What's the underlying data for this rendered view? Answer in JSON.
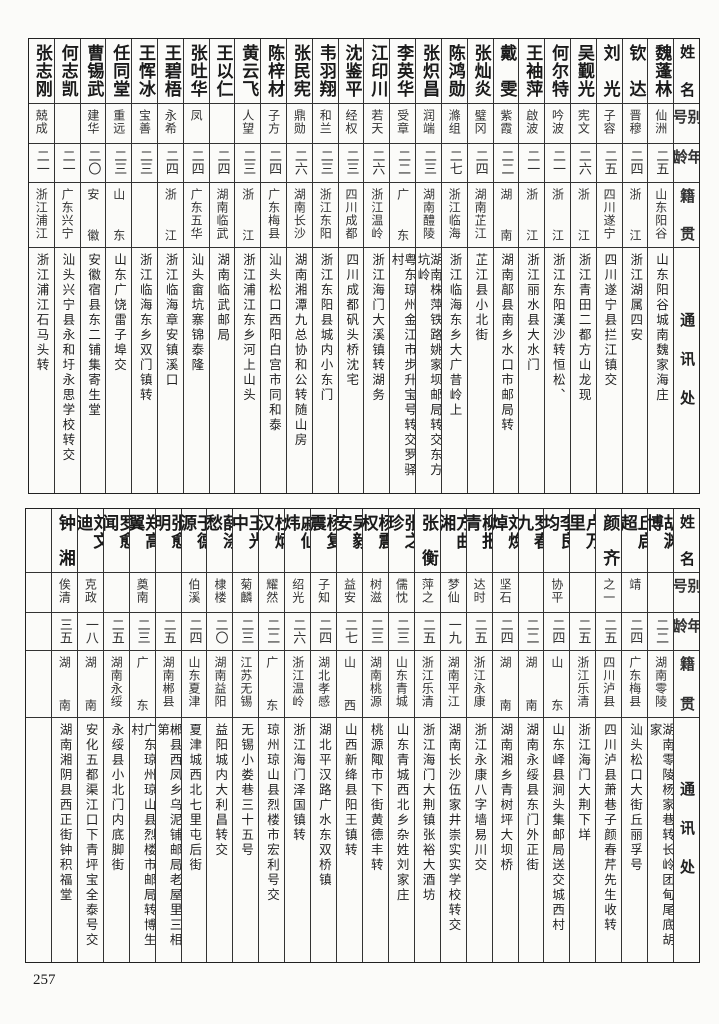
{
  "headers": {
    "name": "姓名",
    "alias": "别号",
    "age": "年龄",
    "native": "籍贯",
    "address": "通讯处"
  },
  "top_table": [
    {
      "name": "魏蓬林",
      "alias": "仙洲",
      "age": "二五",
      "native": "山东阳谷",
      "address": "山东阳谷城南魏家海庄"
    },
    {
      "name": "钦达",
      "alias": "晋穆",
      "age": "二四",
      "native": "浙江",
      "address": "浙江湖属四安"
    },
    {
      "name": "刘光",
      "alias": "子容",
      "age": "二五",
      "native": "四川遂宁",
      "address": "四川遂宁县拦江镇交"
    },
    {
      "name": "吴觐光",
      "alias": "宪文",
      "age": "二六",
      "native": "浙江",
      "address": "浙江青田二都方山龙现"
    },
    {
      "name": "何尔特",
      "alias": "吟波",
      "age": "二一",
      "native": "浙江",
      "address": "浙江东阳漢沙转恒松、"
    },
    {
      "name": "王袖萍",
      "alias": "啟波",
      "age": "二一",
      "native": "浙江",
      "address": "浙江丽水县大水门"
    },
    {
      "name": "戴雯",
      "alias": "紫霞",
      "age": "二二",
      "native": "湖南",
      "address": "湖南鄗县南乡水口市邮局转"
    },
    {
      "name": "张灿炎",
      "alias": "璧冈",
      "age": "二四",
      "native": "湖南芷江",
      "address": "芷江县小北街"
    },
    {
      "name": "陈鸿勋",
      "alias": "滌组",
      "age": "二七",
      "native": "浙江临海",
      "address": "浙江临海东乡大广昔岭上"
    },
    {
      "name": "张炽昌",
      "alias": "润端",
      "age": "二三",
      "native": "湖南醴陵",
      "address": "湖南株萍铁路姚家坝邮局转交东方坑岭"
    },
    {
      "name": "李英华",
      "alias": "受章",
      "age": "二二",
      "native": "广东",
      "address": "粤东琼州金江市步升宝号转交罗驿村"
    },
    {
      "name": "江印川",
      "alias": "若天",
      "age": "二六",
      "native": "浙江温岭",
      "address": "浙江海门大溪镇转湖务"
    },
    {
      "name": "沈鉴平",
      "alias": "经权",
      "age": "二三",
      "native": "四川成都",
      "address": "四川成都矾头桥沈宅"
    },
    {
      "name": "韦羽翔",
      "alias": "和兰",
      "age": "二三",
      "native": "浙江东阳",
      "address": "浙江东阳县城内小东门"
    },
    {
      "name": "张民宪",
      "alias": "鼎勋",
      "age": "二六",
      "native": "湖南长沙",
      "address": "湖南湘潭九总协和公转随山房"
    },
    {
      "name": "陈梓材",
      "alias": "子方",
      "age": "二四",
      "native": "广东梅县",
      "address": "汕头松口西阳白宫市同和泰"
    },
    {
      "name": "黄云飞",
      "alias": "人望",
      "age": "二三",
      "native": "浙江",
      "address": "浙江浦江东乡河上山头"
    },
    {
      "name": "王以仁",
      "alias": "",
      "age": "二四",
      "native": "湖南临武",
      "address": "湖南临武邮局"
    },
    {
      "name": "张吐华",
      "alias": "凤",
      "age": "二四",
      "native": "广东五华",
      "address": "汕头畲坑寨锦泰隆"
    },
    {
      "name": "王碧梧",
      "alias": "永希",
      "age": "二四",
      "native": "浙江",
      "address": "浙江临海章安镇溪口"
    },
    {
      "name": "王恽冰",
      "alias": "宝善",
      "age": "二三",
      "native": "",
      "address": "浙江临海东乡双门镇转"
    },
    {
      "name": "任同堂",
      "alias": "重远",
      "age": "二三",
      "native": "山东",
      "address": "山东广饶雷子埠交"
    },
    {
      "name": "曹锡武",
      "alias": "建华",
      "age": "二〇",
      "native": "安徽",
      "address": "安徽宿县东二铺集寄生堂"
    },
    {
      "name": "何志凯",
      "alias": "",
      "age": "二一",
      "native": "广东兴宁",
      "address": "汕头兴宁县永和圩永思学校转交"
    },
    {
      "name": "张志刚",
      "alias": "兢成",
      "age": "二一",
      "native": "浙江浦江",
      "address": "浙江浦江石马头转"
    }
  ],
  "bottom_table": [
    {
      "name": "胡渊博",
      "alias": "",
      "age": "二二",
      "native": "湖南零陵",
      "address": "湖南零陵杨家巷转长岭团甸尾底胡家"
    },
    {
      "name": "丘启超",
      "alias": "靖",
      "age": "二四",
      "native": "广东梅县",
      "address": "汕头松口大街丘丽孚号"
    },
    {
      "name": "颜齐",
      "alias": "之一",
      "age": "二五",
      "native": "四川泸县",
      "address": "四川泸县萧巷子颜春芹先生收转"
    },
    {
      "name": "卢万里",
      "alias": "",
      "age": "二五",
      "native": "浙江乐清",
      "address": "浙江海门大荆下垟"
    },
    {
      "name": "李良均",
      "alias": "协平",
      "age": "二四",
      "native": "山东",
      "address": "山东峄县涧头集邮局送交城西村"
    },
    {
      "name": "罗春九",
      "alias": "",
      "age": "二二",
      "native": "湖南",
      "address": "湖南永绥县东门外正街"
    },
    {
      "name": "刘焕焯",
      "alias": "坚石",
      "age": "二四",
      "native": "湖南",
      "address": "湖南湘乡青树坪大坝桥"
    },
    {
      "name": "柳报青",
      "alias": "达时",
      "age": "二五",
      "native": "浙江永康",
      "address": "浙江永康八字墙易川交"
    },
    {
      "name": "方曲湘",
      "alias": "梦仙",
      "age": "一九",
      "native": "湖南平江",
      "address": "湖南长沙伍家井崇实实学校转交"
    },
    {
      "name": "张衡",
      "alias": "萍之",
      "age": "二五",
      "native": "浙江乐清",
      "address": "浙江海门大荆镇张裕大酒坊"
    },
    {
      "name": "张之珍",
      "alias": "儒忱",
      "age": "二三",
      "native": "山东青城",
      "address": "山东青城西北乡杂姓刘家庄"
    },
    {
      "name": "杨震权",
      "alias": "树滋",
      "age": "二三",
      "native": "湖南桃源",
      "address": "桃源陬市下街黄德丰转"
    },
    {
      "name": "吴毅安",
      "alias": "益安",
      "age": "二七",
      "native": "山西",
      "address": "山西新绛县阳王镇转"
    },
    {
      "name": "杨复震",
      "alias": "子知",
      "age": "二四",
      "native": "湖北孝感",
      "address": "湖北平汉路广水东双桥镇"
    },
    {
      "name": "戚仙炜",
      "alias": "绍光",
      "age": "二六",
      "native": "浙江温岭",
      "address": "浙江海门泽国镇转"
    },
    {
      "name": "杜炳汉",
      "alias": "耀然",
      "age": "二二",
      "native": "广东",
      "address": "琼州琼山县烈楼市宏利号交"
    },
    {
      "name": "王光中",
      "alias": "菊麟",
      "age": "二三",
      "native": "江苏无锡",
      "address": "无锡小娄巷三十五号"
    },
    {
      "name": "薛涤愁",
      "alias": "棣楼",
      "age": "二〇",
      "native": "湖南益阳",
      "address": "益阳城内大利昌转交"
    },
    {
      "name": "于德源",
      "alias": "伯溪",
      "age": "二四",
      "native": "山东夏津",
      "address": "夏津城西北七里屯后街"
    },
    {
      "name": "张愈明",
      "alias": "",
      "age": "二五",
      "native": "湖南郴县",
      "address": "郴县西凤乡乌泥铺邮局老屋里三相第"
    },
    {
      "name": "郑高翼",
      "alias": "奠南",
      "age": "二三",
      "native": "广东",
      "address": "广东琼州琼山县烈楼市邮局转博生村"
    },
    {
      "name": "罗愈闻",
      "alias": "",
      "age": "二五",
      "native": "湖南永绥",
      "address": "永绥县小北门内底脚街"
    },
    {
      "name": "刘文迪",
      "alias": "克政",
      "age": "一八",
      "native": "湖南",
      "address": "安化五都渠江口下青坪宝全泰号交"
    },
    {
      "name": "钟湘",
      "alias": "俟清",
      "age": "三五",
      "native": "湖南",
      "address": "湖南湘阴县西正街钟积福堂"
    }
  ],
  "page_number": "257"
}
